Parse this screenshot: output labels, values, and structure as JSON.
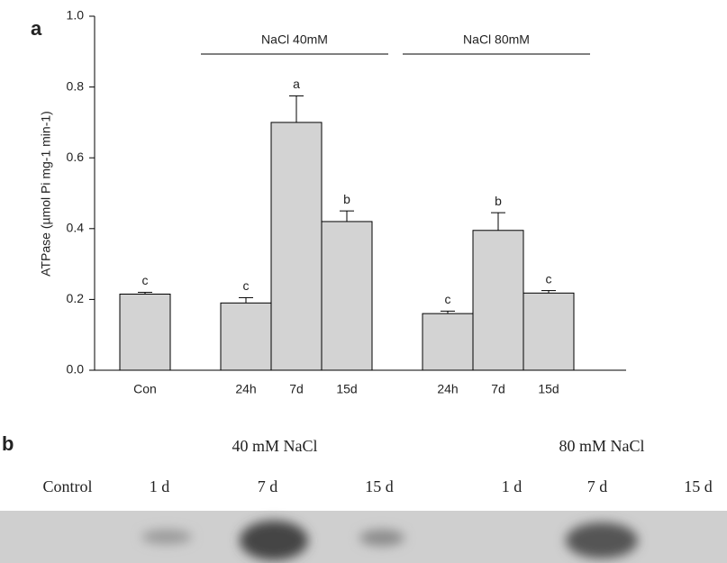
{
  "chart_data": {
    "type": "bar",
    "panel_label": "a",
    "ylabel": "ATPase (µmol Pi mg-1 min-1)",
    "categories": [
      "Con",
      null,
      "24h",
      "7d",
      "15d",
      null,
      "24h",
      "7d",
      "15d"
    ],
    "values": [
      0.215,
      null,
      0.19,
      0.7,
      0.42,
      null,
      0.16,
      0.395,
      0.218
    ],
    "errors": [
      0.005,
      null,
      0.015,
      0.075,
      0.03,
      null,
      0.007,
      0.05,
      0.007
    ],
    "annotations": [
      "c",
      null,
      "c",
      "a",
      "b",
      null,
      "c",
      "b",
      "c"
    ],
    "groups": [
      {
        "label": "NaCl 40mM"
      },
      {
        "label": "NaCl 80mM"
      }
    ],
    "color": "#d3d3d3",
    "ylim": [
      0,
      1.0
    ],
    "yticks": [
      {
        "value": 0,
        "label": "0.0"
      },
      0.2,
      0.4,
      0.6,
      0.8,
      {
        "value": 1.0,
        "label": "1.0"
      }
    ]
  },
  "blot": {
    "panel_label": "b",
    "groups": [
      "40 mM NaCl",
      "80 mM NaCl"
    ],
    "lanes": [
      "Control",
      "1 d",
      "7 d",
      "15 d",
      "1 d",
      "7 d",
      "15 d"
    ]
  }
}
